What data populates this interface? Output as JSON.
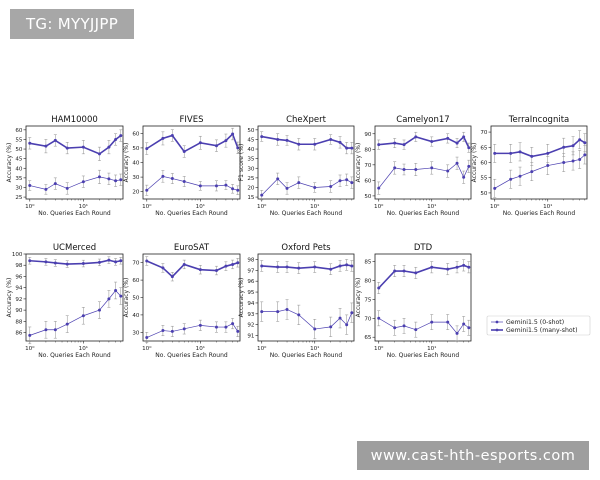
{
  "overlay": {
    "tag_text": "TG: MYYJJPP",
    "watermark_text": "www.cast-hth-esports.com"
  },
  "colors": {
    "series": "#4b3fb0",
    "error": "#8f8f8f"
  },
  "legend": {
    "zero_shot": "Gemini1.5 (0-shot)",
    "many_shot": "Gemini1.5 (many-shot)"
  },
  "chart_data": [
    {
      "type": "line",
      "title": "HAM10000",
      "xlabel": "No. Queries Each Round",
      "ylabel": "Accuracy (%)",
      "xscale": "log",
      "xlim": [
        0.85,
        55
      ],
      "ylim": [
        24,
        62
      ],
      "yticks": [
        25,
        30,
        35,
        40,
        45,
        50,
        55,
        60
      ],
      "xticks": [
        {
          "v": 1,
          "label": "10⁰"
        },
        {
          "v": 10,
          "label": "10¹"
        }
      ],
      "series": [
        {
          "name": "Gemini1.5 (0-shot)",
          "x": [
            1,
            2,
            3,
            5,
            10,
            20,
            30,
            40,
            50
          ],
          "y": [
            31,
            29,
            32,
            29.5,
            33,
            35.5,
            34.5,
            33.5,
            34
          ],
          "err": [
            2.5,
            2.5,
            3,
            3,
            3,
            3.5,
            3,
            3,
            3
          ]
        },
        {
          "name": "Gemini1.5 (many-shot)",
          "x": [
            1,
            2,
            3,
            5,
            10,
            20,
            30,
            40,
            50
          ],
          "y": [
            53,
            51.5,
            54.5,
            50.5,
            51,
            47.5,
            51,
            55,
            57
          ],
          "err": [
            3,
            3.5,
            3,
            3,
            3.5,
            3.5,
            3.5,
            3,
            3
          ]
        }
      ]
    },
    {
      "type": "line",
      "title": "FIVES",
      "xlabel": "No. Queries Each Round",
      "ylabel": "Accuracy (%)",
      "xscale": "log",
      "xlim": [
        0.85,
        55
      ],
      "ylim": [
        15,
        65
      ],
      "yticks": [
        20,
        30,
        40,
        50,
        60
      ],
      "xticks": [
        {
          "v": 1,
          "label": "10⁰"
        },
        {
          "v": 10,
          "label": "10¹"
        }
      ],
      "series": [
        {
          "name": "Gemini1.5 (0-shot)",
          "x": [
            1,
            2,
            3,
            5,
            10,
            20,
            30,
            40,
            50
          ],
          "y": [
            21,
            30.5,
            29,
            27,
            24,
            24,
            24.5,
            22,
            21
          ],
          "err": [
            3.5,
            4,
            3.5,
            3.5,
            3,
            3.5,
            3,
            3,
            3
          ]
        },
        {
          "name": "Gemini1.5 (many-shot)",
          "x": [
            1,
            2,
            3,
            5,
            10,
            20,
            30,
            40,
            50
          ],
          "y": [
            49.5,
            56.5,
            58.5,
            47.5,
            53.5,
            51.5,
            55,
            59.5,
            50
          ],
          "err": [
            4,
            4.5,
            4,
            4,
            4.5,
            4,
            4.5,
            4,
            4
          ]
        }
      ]
    },
    {
      "type": "line",
      "title": "CheXpert",
      "xlabel": "No. Queries Each Round",
      "ylabel": "F1 score (%)",
      "xscale": "log",
      "xlim": [
        0.85,
        55
      ],
      "ylim": [
        14,
        52
      ],
      "yticks": [
        15,
        20,
        25,
        30,
        35,
        40,
        45,
        50
      ],
      "xticks": [
        {
          "v": 1,
          "label": "10⁰"
        },
        {
          "v": 10,
          "label": "10¹"
        }
      ],
      "series": [
        {
          "name": "Gemini1.5 (0-shot)",
          "x": [
            1,
            2,
            3,
            5,
            10,
            20,
            30,
            40,
            50
          ],
          "y": [
            16,
            24.5,
            19.5,
            22.5,
            20,
            20.5,
            23.5,
            24,
            22.5
          ],
          "err": [
            2.5,
            3,
            3,
            3,
            2.5,
            3,
            3,
            3,
            3
          ]
        },
        {
          "name": "Gemini1.5 (many-shot)",
          "x": [
            1,
            2,
            3,
            5,
            10,
            20,
            30,
            40,
            50
          ],
          "y": [
            46.5,
            45,
            44.5,
            42.5,
            42.5,
            45,
            43.5,
            40.5,
            40.5
          ],
          "err": [
            2.5,
            3,
            2.5,
            3,
            3,
            2.5,
            3,
            3,
            3
          ]
        }
      ]
    },
    {
      "type": "line",
      "title": "Camelyon17",
      "xlabel": "No. Queries Each Round",
      "ylabel": "Accuracy (%)",
      "xscale": "log",
      "xlim": [
        0.85,
        55
      ],
      "ylim": [
        48,
        95
      ],
      "yticks": [
        50,
        60,
        70,
        80,
        90
      ],
      "xticks": [
        {
          "v": 1,
          "label": "10⁰"
        },
        {
          "v": 10,
          "label": "10¹"
        }
      ],
      "series": [
        {
          "name": "Gemini1.5 (0-shot)",
          "x": [
            1,
            2,
            3,
            5,
            10,
            20,
            30,
            40,
            50
          ],
          "y": [
            55,
            68,
            67,
            67,
            68,
            66,
            71,
            62,
            69
          ],
          "err": [
            4,
            4,
            3.5,
            4,
            4,
            4,
            4,
            4,
            4
          ]
        },
        {
          "name": "Gemini1.5 (many-shot)",
          "x": [
            1,
            2,
            3,
            5,
            10,
            20,
            30,
            40,
            50
          ],
          "y": [
            83,
            84,
            83,
            88,
            85,
            87,
            84,
            88,
            81
          ],
          "err": [
            3,
            3,
            3,
            3,
            3,
            3,
            3,
            3,
            3
          ]
        }
      ]
    },
    {
      "type": "line",
      "title": "TerraIncognita",
      "xlabel": "No. Queries Each Round",
      "ylabel": "Accuracy (%)",
      "xscale": "log",
      "xlim": [
        0.85,
        55
      ],
      "ylim": [
        48,
        72
      ],
      "yticks": [
        50,
        55,
        60,
        65,
        70
      ],
      "xticks": [
        {
          "v": 1,
          "label": "10⁰"
        },
        {
          "v": 10,
          "label": "10¹"
        }
      ],
      "series": [
        {
          "name": "Gemini1.5 (0-shot)",
          "x": [
            1,
            2,
            3,
            5,
            10,
            20,
            30,
            40,
            50
          ],
          "y": [
            51.5,
            54.5,
            55.5,
            57,
            59,
            60,
            60.5,
            61,
            62.5
          ],
          "err": [
            3,
            3,
            3,
            3,
            3,
            3,
            3,
            3,
            3
          ]
        },
        {
          "name": "Gemini1.5 (many-shot)",
          "x": [
            1,
            2,
            3,
            5,
            10,
            20,
            30,
            40,
            50
          ],
          "y": [
            63,
            63,
            63.5,
            62,
            63,
            65,
            65.5,
            67.5,
            66.5
          ],
          "err": [
            3,
            3,
            3,
            3,
            3,
            3,
            3,
            3,
            3
          ]
        }
      ]
    },
    {
      "type": "line",
      "title": "UCMerced",
      "xlabel": "No. Queries Each Round",
      "ylabel": "Accuracy (%)",
      "xscale": "log",
      "xlim": [
        0.85,
        55
      ],
      "ylim": [
        84.5,
        100
      ],
      "yticks": [
        86,
        88,
        90,
        92,
        94,
        96,
        98,
        100
      ],
      "xticks": [
        {
          "v": 1,
          "label": "10⁰"
        },
        {
          "v": 10,
          "label": "10¹"
        }
      ],
      "series": [
        {
          "name": "Gemini1.5 (0-shot)",
          "x": [
            1,
            2,
            3,
            5,
            10,
            20,
            30,
            40,
            50
          ],
          "y": [
            85.5,
            86.5,
            86.5,
            87.5,
            89,
            90,
            92,
            93.5,
            92.5
          ],
          "err": [
            1.5,
            1.5,
            1.5,
            1.5,
            1.5,
            1.5,
            1.5,
            1.5,
            1.5
          ]
        },
        {
          "name": "Gemini1.5 (many-shot)",
          "x": [
            1,
            2,
            3,
            5,
            10,
            20,
            30,
            40,
            50
          ],
          "y": [
            98.8,
            98.6,
            98.4,
            98.2,
            98.3,
            98.5,
            98.9,
            98.6,
            98.8
          ],
          "err": [
            0.6,
            0.6,
            0.6,
            0.6,
            0.6,
            0.6,
            0.6,
            0.6,
            0.6
          ]
        }
      ]
    },
    {
      "type": "line",
      "title": "EuroSAT",
      "xlabel": "No. Queries Each Round",
      "ylabel": "Accuracy (%)",
      "xscale": "log",
      "xlim": [
        0.85,
        55
      ],
      "ylim": [
        25,
        75
      ],
      "yticks": [
        30,
        40,
        50,
        60,
        70
      ],
      "xticks": [
        {
          "v": 1,
          "label": "10⁰"
        },
        {
          "v": 10,
          "label": "10¹"
        }
      ],
      "series": [
        {
          "name": "Gemini1.5 (0-shot)",
          "x": [
            1,
            2,
            3,
            5,
            10,
            20,
            30,
            40,
            50
          ],
          "y": [
            27,
            31,
            30.5,
            32,
            34,
            33,
            33,
            35,
            30.5
          ],
          "err": [
            3,
            3,
            3,
            3,
            3,
            3,
            3,
            3,
            3
          ]
        },
        {
          "name": "Gemini1.5 (many-shot)",
          "x": [
            1,
            2,
            3,
            5,
            10,
            20,
            30,
            40,
            50
          ],
          "y": [
            71,
            67,
            62,
            69,
            66,
            65.5,
            68,
            69,
            70
          ],
          "err": [
            2.5,
            2.5,
            2.5,
            2.5,
            2.5,
            2.5,
            2.5,
            2.5,
            2.5
          ]
        }
      ]
    },
    {
      "type": "line",
      "title": "Oxford Pets",
      "xlabel": "No. Queries Each Round",
      "ylabel": "Accuracy (%)",
      "xscale": "log",
      "xlim": [
        0.85,
        55
      ],
      "ylim": [
        90.5,
        98.5
      ],
      "yticks": [
        91,
        92,
        93,
        94,
        95,
        96,
        97,
        98
      ],
      "xticks": [
        {
          "v": 1,
          "label": "10⁰"
        },
        {
          "v": 10,
          "label": "10¹"
        }
      ],
      "series": [
        {
          "name": "Gemini1.5 (0-shot)",
          "x": [
            1,
            2,
            3,
            5,
            10,
            20,
            30,
            40,
            50
          ],
          "y": [
            93.2,
            93.2,
            93.4,
            92.9,
            91.6,
            91.8,
            92.6,
            92,
            93.1
          ],
          "err": [
            0.9,
            0.9,
            0.9,
            0.9,
            0.9,
            0.9,
            0.9,
            0.9,
            0.9
          ]
        },
        {
          "name": "Gemini1.5 (many-shot)",
          "x": [
            1,
            2,
            3,
            5,
            10,
            20,
            30,
            40,
            50
          ],
          "y": [
            97.4,
            97.3,
            97.3,
            97.2,
            97.3,
            97.1,
            97.4,
            97.5,
            97.4
          ],
          "err": [
            0.5,
            0.5,
            0.5,
            0.5,
            0.5,
            0.5,
            0.5,
            0.5,
            0.5
          ]
        }
      ]
    },
    {
      "type": "line",
      "title": "DTD",
      "xlabel": "No. Queries Each Round",
      "ylabel": "Accuracy (%)",
      "xscale": "log",
      "xlim": [
        0.85,
        55
      ],
      "ylim": [
        64,
        87
      ],
      "yticks": [
        65,
        70,
        75,
        80,
        85
      ],
      "xticks": [
        {
          "v": 1,
          "label": "10⁰"
        },
        {
          "v": 10,
          "label": "10¹"
        }
      ],
      "series": [
        {
          "name": "Gemini1.5 (0-shot)",
          "x": [
            1,
            2,
            3,
            5,
            10,
            20,
            30,
            40,
            50
          ],
          "y": [
            70,
            67.5,
            68,
            67,
            69,
            69,
            66,
            68.5,
            67.5
          ],
          "err": [
            2,
            2,
            2,
            2,
            2,
            2,
            2,
            2,
            2
          ]
        },
        {
          "name": "Gemini1.5 (many-shot)",
          "x": [
            1,
            2,
            3,
            5,
            10,
            20,
            30,
            40,
            50
          ],
          "y": [
            78,
            82.5,
            82.5,
            82,
            83.5,
            83,
            83.5,
            84,
            83.5
          ],
          "err": [
            1.5,
            1.5,
            1.5,
            1.5,
            1.5,
            1.5,
            1.5,
            1.5,
            1.5
          ]
        }
      ]
    }
  ]
}
